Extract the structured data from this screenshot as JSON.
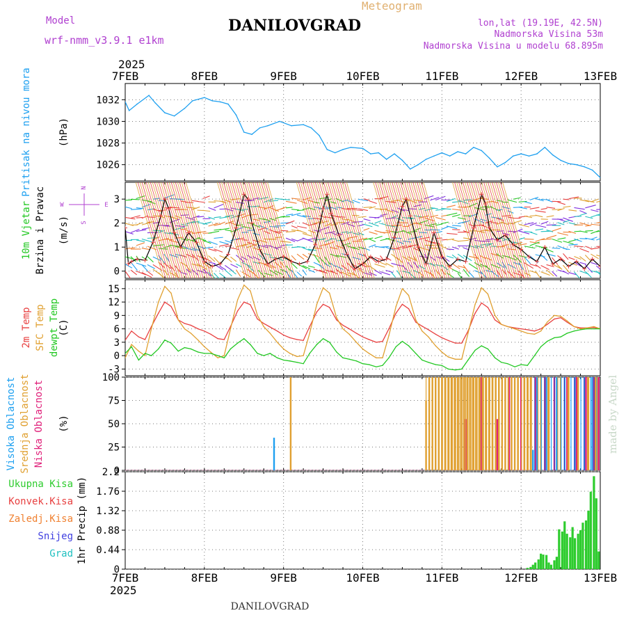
{
  "header": {
    "model_label": "Model",
    "model_name": "wrf-nmm_v3.9.1  e1km",
    "station": "DANILOVGRAD",
    "meteogram_label": "Meteogram",
    "lonlat": "lon,lat (19.19E, 42.5N)",
    "altitude": "Nadmorska Visina 53m",
    "model_altitude": "Nadmorska Visina u modelu 68.895m",
    "footer_station": "DANILOVGRAD",
    "watermark": "made by Angel",
    "year": "2025"
  },
  "colors": {
    "pressure": "#1ea0f0",
    "temp2m": "#e84040",
    "sfc_temp": "#e0a030",
    "dewpt": "#22c822",
    "high_cloud": "#1ea0f0",
    "mid_cloud": "#e0a030",
    "low_cloud": "#e0207a",
    "total_precip": "#2ecc2e",
    "conv_precip": "#e84040",
    "frz_precip": "#f08030",
    "snow": "#4040e0",
    "grad": "#20c0c0",
    "wind_label": "#22c822",
    "compass": "#b040d0"
  },
  "time_axis": {
    "labels": [
      "7FEB",
      "8FEB",
      "9FEB",
      "10FEB",
      "11FEB",
      "12FEB",
      "13FEB"
    ],
    "start_day": 7,
    "end_day": 13
  },
  "chart_data": [
    {
      "type": "line",
      "panel": "pressure",
      "ylabel_lines": [
        "Pritisak na nivou mora"
      ],
      "unit": "(hPa)",
      "ylim": [
        1024.5,
        1033.5
      ],
      "yticks": [
        1026,
        1028,
        1030,
        1032
      ],
      "series": [
        {
          "x": [
            7.0,
            7.05,
            7.15,
            7.3,
            7.38,
            7.5,
            7.62,
            7.75,
            7.85,
            8.0,
            8.1,
            8.2,
            8.3,
            8.4,
            8.5,
            8.6,
            8.7,
            8.8,
            8.95,
            9.1,
            9.25,
            9.35,
            9.45,
            9.55,
            9.65,
            9.75,
            9.85,
            10.0,
            10.1,
            10.2,
            10.3,
            10.4,
            10.5,
            10.6,
            10.7,
            10.8,
            10.9,
            11.0,
            11.1,
            11.2,
            11.3,
            11.4,
            11.5,
            11.6,
            11.7,
            11.8,
            11.9,
            12.0,
            12.1,
            12.2,
            12.3,
            12.4,
            12.5,
            12.6,
            12.7,
            12.8,
            12.9,
            13.0
          ],
          "values": [
            1031.8,
            1031.0,
            1031.6,
            1032.4,
            1031.7,
            1030.8,
            1030.5,
            1031.2,
            1031.9,
            1032.2,
            1031.9,
            1031.8,
            1031.6,
            1030.6,
            1029.0,
            1028.8,
            1029.4,
            1029.6,
            1030.0,
            1029.6,
            1029.7,
            1029.4,
            1028.7,
            1027.4,
            1027.1,
            1027.4,
            1027.6,
            1027.5,
            1027.0,
            1027.1,
            1026.5,
            1027.0,
            1026.4,
            1025.6,
            1026.0,
            1026.5,
            1026.8,
            1027.1,
            1026.8,
            1027.2,
            1027.0,
            1027.6,
            1027.3,
            1026.6,
            1025.8,
            1026.2,
            1026.8,
            1027.0,
            1026.8,
            1027.0,
            1027.6,
            1026.9,
            1026.4,
            1026.1,
            1026.0,
            1025.8,
            1025.5,
            1024.8
          ]
        }
      ]
    },
    {
      "type": "line",
      "panel": "wind",
      "ylabel_lines": [
        "10m Vjetar",
        "Brzina i Pravac"
      ],
      "unit": "(m/s)",
      "ylim": [
        -0.3,
        3.7
      ],
      "yticks": [
        0,
        1,
        2,
        3
      ],
      "compass": [
        "N",
        "E",
        "W",
        "S"
      ],
      "series": [
        {
          "x": [
            7.0,
            7.04,
            7.08,
            7.15,
            7.25,
            7.35,
            7.45,
            7.5,
            7.55,
            7.62,
            7.7,
            7.8,
            7.9,
            8.0,
            8.1,
            8.2,
            8.3,
            8.4,
            8.5,
            8.55,
            8.6,
            8.7,
            8.8,
            8.9,
            9.0,
            9.1,
            9.2,
            9.3,
            9.4,
            9.5,
            9.55,
            9.6,
            9.7,
            9.8,
            9.9,
            10.0,
            10.1,
            10.2,
            10.3,
            10.4,
            10.5,
            10.55,
            10.6,
            10.7,
            10.8,
            10.9,
            11.0,
            11.1,
            11.2,
            11.3,
            11.4,
            11.5,
            11.55,
            11.6,
            11.7,
            11.8,
            11.9,
            12.0,
            12.1,
            12.2,
            12.3,
            12.4,
            12.5,
            12.6,
            12.7,
            12.8,
            12.9,
            13.0
          ],
          "values": [
            1.8,
            0.3,
            0.4,
            0.5,
            0.45,
            1.2,
            2.3,
            3.0,
            2.6,
            1.6,
            1.0,
            1.6,
            1.2,
            0.4,
            0.2,
            0.3,
            0.7,
            1.8,
            3.2,
            3.0,
            2.0,
            0.9,
            0.3,
            0.5,
            0.6,
            0.4,
            0.3,
            0.4,
            1.1,
            2.6,
            3.2,
            2.4,
            1.5,
            0.7,
            0.1,
            0.3,
            0.6,
            0.4,
            0.5,
            1.4,
            2.7,
            3.0,
            2.3,
            1.0,
            0.3,
            1.6,
            0.6,
            0.2,
            0.5,
            0.4,
            1.8,
            3.2,
            2.8,
            1.8,
            1.3,
            1.5,
            1.1,
            0.9,
            0.6,
            0.4,
            1.0,
            0.3,
            0.5,
            0.2,
            0.4,
            0.1,
            0.5,
            0.2
          ]
        }
      ]
    },
    {
      "type": "line",
      "panel": "temperature",
      "ylabel_lines": [
        "2m Temp",
        "SFC Temp",
        "dewpt Temp"
      ],
      "unit": "(C)",
      "ylim": [
        -4.5,
        17
      ],
      "yticks": [
        -3,
        0,
        3,
        6,
        9,
        12,
        15
      ],
      "x": [
        7.0,
        7.08,
        7.17,
        7.25,
        7.33,
        7.42,
        7.5,
        7.58,
        7.67,
        7.75,
        7.83,
        7.92,
        8.0,
        8.08,
        8.17,
        8.25,
        8.33,
        8.42,
        8.5,
        8.58,
        8.67,
        8.75,
        8.83,
        8.92,
        9.0,
        9.08,
        9.17,
        9.25,
        9.33,
        9.42,
        9.5,
        9.58,
        9.67,
        9.75,
        9.83,
        9.92,
        10.0,
        10.08,
        10.17,
        10.25,
        10.33,
        10.42,
        10.5,
        10.58,
        10.67,
        10.75,
        10.83,
        10.92,
        11.0,
        11.08,
        11.17,
        11.25,
        11.33,
        11.42,
        11.5,
        11.58,
        11.67,
        11.75,
        11.83,
        11.92,
        12.0,
        12.08,
        12.17,
        12.25,
        12.33,
        12.42,
        12.5,
        12.58,
        12.67,
        12.75,
        12.83,
        12.92,
        13.0
      ],
      "series": [
        {
          "name": "2m Temp",
          "values": [
            3.5,
            5.5,
            4.2,
            3.6,
            6.5,
            9.5,
            12.0,
            11.0,
            8.0,
            7.2,
            6.8,
            6.0,
            5.5,
            4.8,
            3.8,
            3.6,
            6.5,
            10.0,
            12.0,
            11.4,
            8.2,
            7.2,
            6.4,
            5.5,
            4.6,
            4.0,
            3.6,
            3.4,
            6.5,
            9.8,
            11.5,
            10.8,
            8.0,
            6.8,
            6.0,
            5.0,
            4.2,
            3.6,
            3.0,
            3.2,
            6.0,
            9.5,
            11.5,
            10.5,
            7.5,
            6.6,
            5.8,
            4.8,
            4.0,
            3.4,
            2.8,
            2.8,
            5.5,
            9.5,
            11.8,
            10.8,
            8.0,
            7.0,
            6.5,
            6.2,
            6.0,
            5.8,
            5.5,
            6.0,
            7.0,
            8.2,
            8.5,
            7.5,
            6.5,
            6.2,
            6.2,
            6.3,
            6.0
          ]
        },
        {
          "name": "SFC Temp",
          "values": [
            -0.5,
            2.5,
            1.0,
            0.0,
            6.0,
            12.0,
            15.5,
            14.0,
            8.0,
            6.0,
            5.0,
            3.5,
            2.0,
            0.8,
            -0.5,
            0.0,
            6.0,
            12.5,
            15.8,
            14.5,
            9.0,
            6.5,
            5.0,
            3.0,
            1.5,
            0.5,
            -0.2,
            0.0,
            5.0,
            11.5,
            15.2,
            14.0,
            8.5,
            6.0,
            4.8,
            3.0,
            1.5,
            0.5,
            -0.5,
            -0.5,
            4.5,
            11.0,
            15.0,
            13.5,
            8.0,
            5.5,
            4.2,
            2.2,
            0.8,
            -0.3,
            -0.8,
            -0.8,
            5.0,
            11.5,
            15.2,
            13.8,
            9.0,
            7.0,
            6.5,
            6.0,
            5.5,
            5.0,
            4.8,
            5.5,
            7.5,
            9.0,
            8.8,
            7.8,
            6.5,
            6.0,
            6.2,
            6.5,
            6.0
          ]
        },
        {
          "name": "dewpt Temp",
          "values": [
            0.5,
            2.0,
            -1.0,
            0.5,
            0.0,
            1.5,
            3.5,
            2.8,
            1.0,
            1.8,
            1.5,
            0.8,
            0.5,
            0.5,
            0.0,
            -0.5,
            1.5,
            2.8,
            3.8,
            2.5,
            0.5,
            0.0,
            0.5,
            -0.5,
            -1.0,
            -1.2,
            -1.5,
            -1.8,
            0.5,
            2.5,
            3.8,
            3.0,
            0.8,
            -0.5,
            -0.8,
            -1.2,
            -1.8,
            -2.0,
            -2.5,
            -2.2,
            -0.5,
            2.0,
            3.2,
            2.2,
            0.5,
            -1.0,
            -1.5,
            -2.0,
            -2.2,
            -3.0,
            -3.2,
            -3.0,
            -1.0,
            1.2,
            2.2,
            1.5,
            -0.5,
            -1.5,
            -1.8,
            -2.5,
            -2.0,
            -2.2,
            0.0,
            2.0,
            3.2,
            4.0,
            4.2,
            5.0,
            5.5,
            5.8,
            6.0,
            6.0,
            6.0
          ]
        }
      ]
    },
    {
      "type": "bar",
      "panel": "cloud",
      "ylabel_lines": [
        "Visoka Oblacnost",
        "Srednja Oblacnost",
        "Niska Oblacnost"
      ],
      "unit": "(%)",
      "ylim": [
        0,
        100
      ],
      "yticks": [
        0,
        25,
        50,
        75,
        100
      ],
      "series": [
        {
          "name": "Visoka Oblacnost",
          "x": [
            8.88,
            12.15,
            12.2,
            12.32,
            12.45,
            12.55,
            12.68,
            12.8,
            12.9,
            12.96
          ],
          "values": [
            35,
            22,
            100,
            100,
            100,
            100,
            100,
            100,
            100,
            100
          ]
        },
        {
          "name": "Srednja Oblacnost",
          "x": [
            9.09,
            10.8,
            10.84,
            10.88,
            10.92,
            10.96,
            11.0,
            11.04,
            11.08,
            11.12,
            11.16,
            11.2,
            11.24,
            11.28,
            11.32,
            11.36,
            11.4,
            11.44,
            11.48,
            11.52,
            11.56,
            11.6,
            11.64,
            11.68,
            11.72,
            11.76,
            11.8,
            11.84,
            11.88,
            11.92,
            11.96,
            12.0,
            12.04,
            12.08,
            12.12,
            12.25,
            12.35,
            12.5,
            12.6,
            12.72,
            12.85,
            12.94
          ],
          "values": [
            100,
            75,
            100,
            100,
            100,
            100,
            100,
            100,
            100,
            100,
            100,
            100,
            100,
            100,
            100,
            100,
            100,
            100,
            100,
            100,
            100,
            100,
            100,
            100,
            100,
            100,
            100,
            100,
            100,
            100,
            100,
            100,
            100,
            100,
            100,
            100,
            100,
            100,
            100,
            100,
            100,
            100
          ]
        },
        {
          "name": "Niska Oblacnost",
          "x": [
            11.3,
            11.5,
            11.7,
            11.85,
            12.0,
            12.18,
            12.3,
            12.42,
            12.58,
            12.7,
            12.82,
            12.92,
            12.98
          ],
          "values": [
            55,
            100,
            55,
            100,
            100,
            100,
            100,
            100,
            100,
            100,
            100,
            100,
            100
          ]
        }
      ]
    },
    {
      "type": "bar",
      "panel": "precip",
      "ylabel_lines": [
        "Ukupna Kisa",
        "Konvek.Kisa",
        "Zaledj.Kisa",
        "Snijeg",
        "Grad"
      ],
      "unit": "1hr Precip (mm)",
      "ylim": [
        0,
        2.2
      ],
      "yticks": [
        0,
        0.44,
        0.88,
        1.32,
        1.76,
        2.2
      ],
      "series": [
        {
          "name": "Ukupna Kisa",
          "x": [
            12.08,
            12.12,
            12.15,
            12.18,
            12.22,
            12.25,
            12.28,
            12.32,
            12.35,
            12.38,
            12.42,
            12.45,
            12.48,
            12.52,
            12.55,
            12.58,
            12.62,
            12.65,
            12.68,
            12.72,
            12.75,
            12.78,
            12.82,
            12.85,
            12.88,
            12.92,
            12.95,
            12.98
          ],
          "values": [
            0.03,
            0.05,
            0.1,
            0.15,
            0.22,
            0.35,
            0.33,
            0.32,
            0.15,
            0.1,
            0.2,
            0.28,
            0.9,
            0.85,
            1.08,
            0.8,
            0.72,
            0.95,
            0.7,
            0.8,
            0.88,
            1.05,
            1.1,
            1.32,
            1.75,
            2.1,
            1.6,
            0.4
          ]
        }
      ]
    }
  ]
}
